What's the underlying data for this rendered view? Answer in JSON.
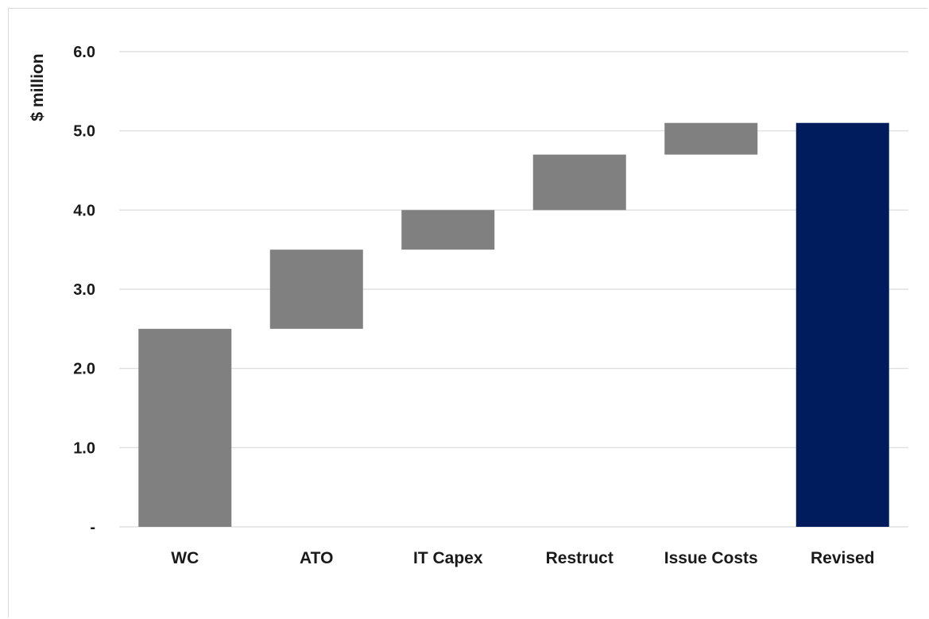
{
  "chart_data": {
    "type": "bar",
    "subtype": "waterfall",
    "title": "",
    "xlabel": "",
    "ylabel": "$ million",
    "ylim": [
      0,
      6
    ],
    "y_ticks": [
      0,
      1,
      2,
      3,
      4,
      5,
      6
    ],
    "y_tick_labels": [
      "-",
      "1.0",
      "2.0",
      "3.0",
      "4.0",
      "5.0",
      "6.0"
    ],
    "grid": true,
    "legend": "none",
    "categories": [
      "WC",
      "ATO",
      "IT Capex",
      "Restruct",
      "Issue Costs",
      "Revised"
    ],
    "bars": [
      {
        "category": "WC",
        "base": 0,
        "value": 2.5,
        "kind": "step"
      },
      {
        "category": "ATO",
        "base": 2.5,
        "value": 1.0,
        "kind": "step"
      },
      {
        "category": "IT Capex",
        "base": 3.5,
        "value": 0.5,
        "kind": "step"
      },
      {
        "category": "Restruct",
        "base": 4.0,
        "value": 0.7,
        "kind": "step"
      },
      {
        "category": "Issue Costs",
        "base": 4.7,
        "value": 0.4,
        "kind": "step"
      },
      {
        "category": "Revised",
        "base": 0,
        "value": 5.1,
        "kind": "total"
      }
    ],
    "colors": {
      "step": "#808080",
      "total": "#001c5c",
      "grid": "#d9d9d9"
    }
  }
}
